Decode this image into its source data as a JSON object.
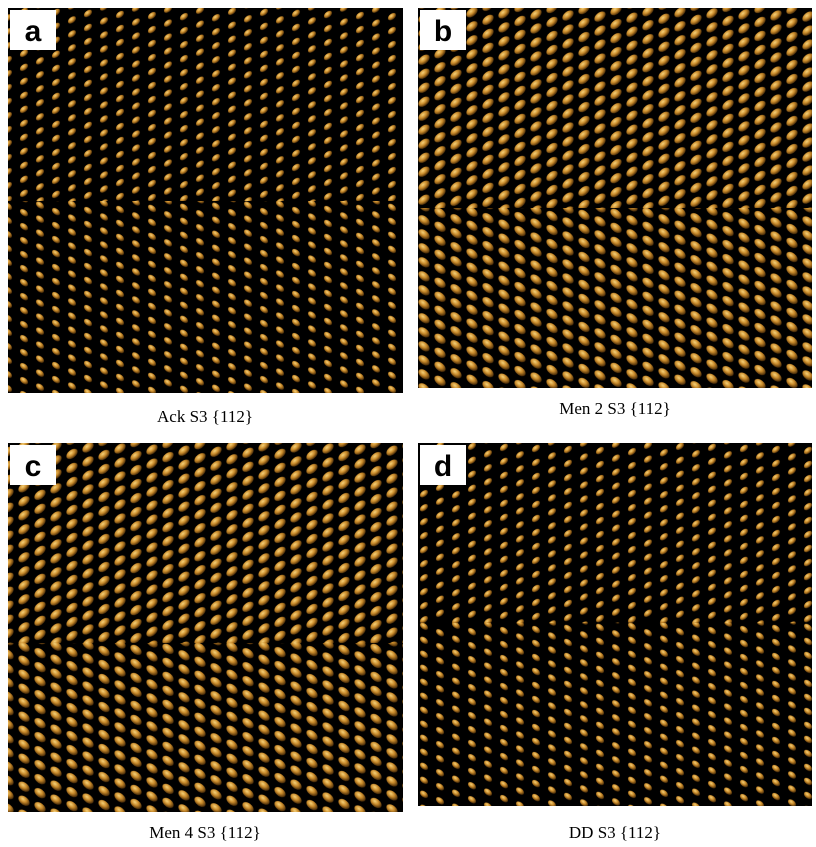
{
  "panels": [
    {
      "label": "a",
      "caption": "Ack S3 {112}"
    },
    {
      "label": "b",
      "caption": "Men 2 S3 {112}"
    },
    {
      "label": "c",
      "caption": "Men 4 S3 {112}"
    },
    {
      "label": "d",
      "caption": "DD S3 {112}"
    }
  ]
}
